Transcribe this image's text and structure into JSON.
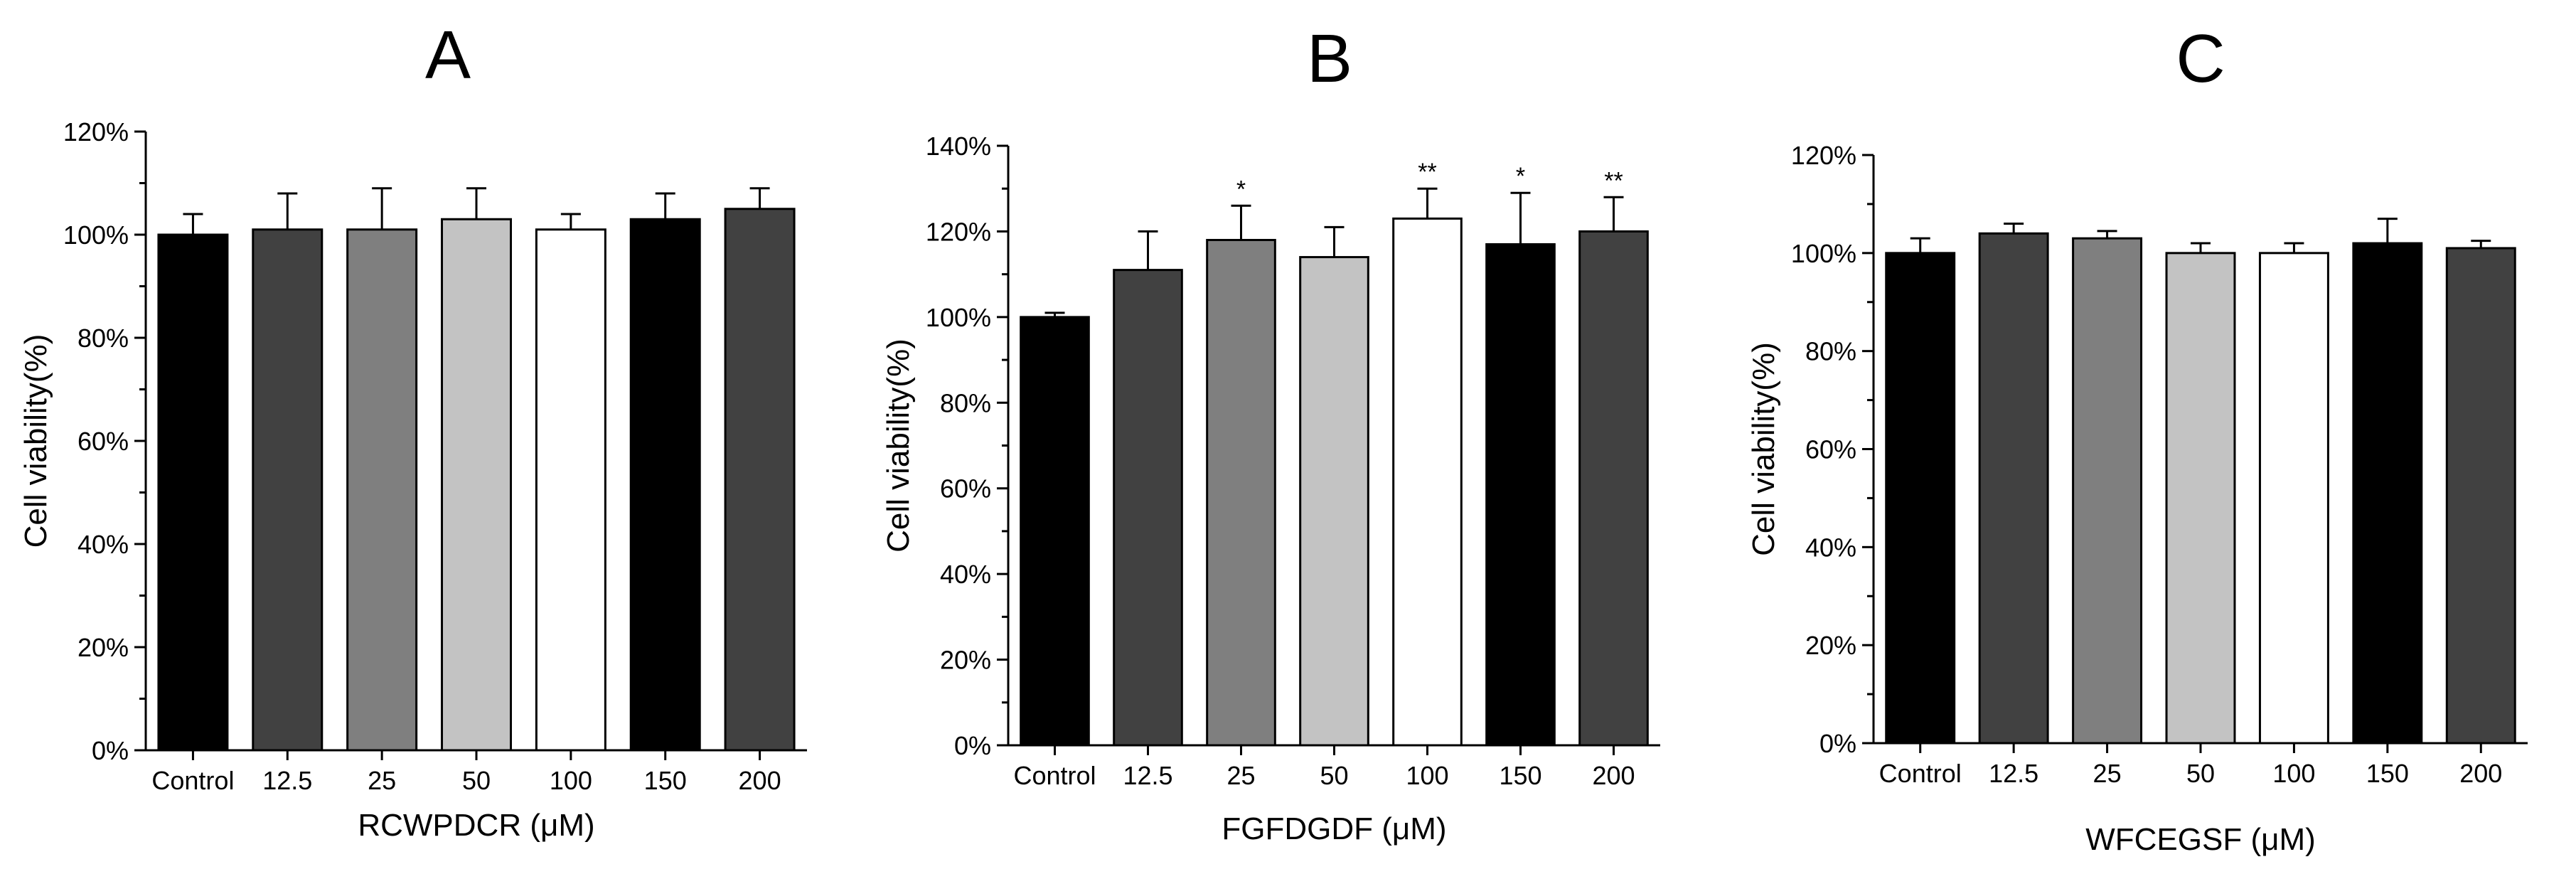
{
  "chart_data": [
    {
      "type": "bar",
      "panel": "A",
      "xlabel": "RCWPDCR (μM)",
      "ylabel": "Cell viability(%)",
      "ylim": [
        0,
        120
      ],
      "yticks": [
        "0%",
        "20%",
        "40%",
        "60%",
        "80%",
        "100%",
        "120%"
      ],
      "categories": [
        "Control",
        "12.5",
        "25",
        "50",
        "100",
        "150",
        "200"
      ],
      "values": [
        100,
        101,
        101,
        103,
        101,
        103,
        105
      ],
      "errors": [
        4,
        7,
        8,
        6,
        3,
        5,
        4
      ],
      "annotations": [
        "",
        "",
        "",
        "",
        "",
        "",
        ""
      ]
    },
    {
      "type": "bar",
      "panel": "B",
      "xlabel": "FGFDGDF (μM)",
      "ylabel": "Cell viability(%)",
      "ylim": [
        0,
        140
      ],
      "yticks": [
        "0%",
        "20%",
        "40%",
        "60%",
        "80%",
        "100%",
        "120%",
        "140%"
      ],
      "categories": [
        "Control",
        "12.5",
        "25",
        "50",
        "100",
        "150",
        "200"
      ],
      "values": [
        100,
        111,
        118,
        114,
        123,
        117,
        120
      ],
      "errors": [
        1,
        9,
        8,
        7,
        7,
        12,
        8
      ],
      "annotations": [
        "",
        "",
        "*",
        "",
        "**",
        "*",
        "**"
      ]
    },
    {
      "type": "bar",
      "panel": "C",
      "xlabel": "WFCEGSF (μM)",
      "ylabel": "Cell viability(%)",
      "ylim": [
        0,
        120
      ],
      "yticks": [
        "0%",
        "20%",
        "40%",
        "60%",
        "80%",
        "100%",
        "120%"
      ],
      "categories": [
        "Control",
        "12.5",
        "25",
        "50",
        "100",
        "150",
        "200"
      ],
      "values": [
        100,
        104,
        103,
        100,
        100,
        102,
        101
      ],
      "errors": [
        3,
        2,
        1.5,
        2,
        2,
        5,
        1.5
      ],
      "annotations": [
        "",
        "",
        "",
        "",
        "",
        "",
        ""
      ]
    }
  ],
  "colors": {
    "bar_fills": [
      "#000000",
      "#414141",
      "#7f7f7f",
      "#c3c3c3",
      "#ffffff",
      "#000000",
      "#414141"
    ],
    "bar_stroke": "#000000"
  }
}
